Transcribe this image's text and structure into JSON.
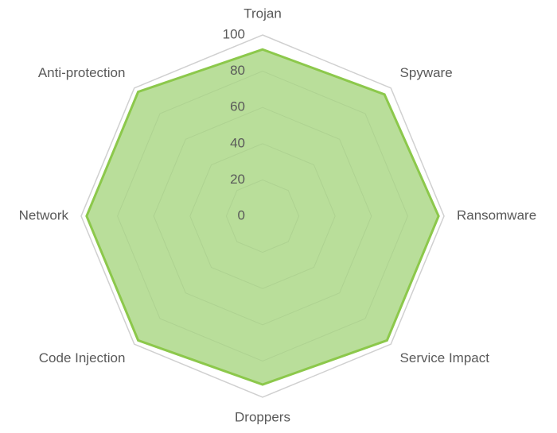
{
  "chart_data": {
    "type": "radar",
    "categories": [
      "Trojan",
      "Spyware",
      "Ransomware",
      "Service Impact",
      "Droppers",
      "Code Injection",
      "Network",
      "Anti-protection"
    ],
    "values": [
      92,
      95,
      97,
      97,
      93,
      97,
      97,
      97
    ],
    "color": "#8cc84b",
    "fill": "#b5dc95",
    "ylim": [
      0,
      100
    ],
    "yticks": [
      0,
      20,
      40,
      60,
      80,
      100
    ],
    "grid": true
  }
}
